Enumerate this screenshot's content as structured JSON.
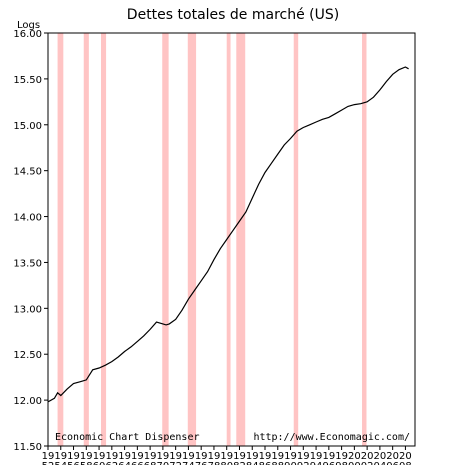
{
  "chart_data": {
    "type": "line",
    "title": "Dettes totales de marché (US)",
    "ylabel": "Logs",
    "xlabel": "",
    "ylim": [
      11.5,
      16.0
    ],
    "xlim": [
      1952,
      2009.5
    ],
    "y_ticks": [
      "16.00",
      "15.50",
      "15.00",
      "14.50",
      "14.00",
      "13.50",
      "13.00",
      "12.50",
      "12.00",
      "11.50"
    ],
    "y_tick_values": [
      16.0,
      15.5,
      15.0,
      14.5,
      14.0,
      13.5,
      13.0,
      12.5,
      12.0,
      11.5
    ],
    "x_ticks_top": [
      "19",
      "19",
      "19",
      "19",
      "19",
      "19",
      "19",
      "19",
      "19",
      "19",
      "19",
      "19",
      "19",
      "19",
      "19",
      "19",
      "19",
      "19",
      "19",
      "19",
      "19",
      "19",
      "19",
      "19",
      "20",
      "20",
      "20",
      "20",
      "20"
    ],
    "x_ticks_bottom": [
      "52",
      "54",
      "56",
      "58",
      "60",
      "62",
      "64",
      "66",
      "68",
      "70",
      "72",
      "74",
      "76",
      "78",
      "80",
      "82",
      "84",
      "86",
      "88",
      "90",
      "92",
      "94",
      "96",
      "98",
      "00",
      "02",
      "04",
      "06",
      "08"
    ],
    "x_tick_values": [
      1952,
      1954,
      1956,
      1958,
      1960,
      1962,
      1964,
      1966,
      1968,
      1970,
      1972,
      1974,
      1976,
      1978,
      1980,
      1982,
      1984,
      1986,
      1988,
      1990,
      1992,
      1994,
      1996,
      1998,
      2000,
      2002,
      2004,
      2006,
      2008
    ],
    "grid": false,
    "recessions": [
      [
        1953.5,
        1954.4
      ],
      [
        1957.6,
        1958.4
      ],
      [
        1960.3,
        1961.1
      ],
      [
        1969.9,
        1970.9
      ],
      [
        1973.9,
        1975.2
      ],
      [
        1980.0,
        1980.6
      ],
      [
        1981.5,
        1982.9
      ],
      [
        1990.5,
        1991.2
      ],
      [
        2001.2,
        2001.9
      ]
    ],
    "recession_color": "#ffc4c4",
    "line_color": "#000000",
    "series": [
      {
        "x": [
          1952,
          1953,
          1953.5,
          1954,
          1955,
          1956,
          1957,
          1958,
          1959,
          1960,
          1961,
          1962,
          1963,
          1964,
          1965,
          1966,
          1967,
          1968,
          1969,
          1970,
          1970.5,
          1971,
          1972,
          1973,
          1974,
          1975,
          1976,
          1977,
          1978,
          1979,
          1980,
          1981,
          1982,
          1983,
          1984,
          1985,
          1986,
          1987,
          1988,
          1989,
          1990,
          1991,
          1992,
          1993,
          1994,
          1995,
          1996,
          1997,
          1998,
          1999,
          2000,
          2001,
          2002,
          2003,
          2004,
          2005,
          2006,
          2007,
          2008,
          2008.5
        ],
        "values": [
          11.98,
          12.02,
          12.08,
          12.05,
          12.12,
          12.18,
          12.2,
          12.22,
          12.33,
          12.35,
          12.38,
          12.42,
          12.47,
          12.53,
          12.58,
          12.64,
          12.7,
          12.77,
          12.85,
          12.83,
          12.82,
          12.83,
          12.88,
          12.98,
          13.1,
          13.2,
          13.3,
          13.4,
          13.53,
          13.65,
          13.75,
          13.85,
          13.95,
          14.05,
          14.2,
          14.35,
          14.48,
          14.58,
          14.68,
          14.78,
          14.85,
          14.93,
          14.97,
          15.0,
          15.03,
          15.06,
          15.08,
          15.12,
          15.16,
          15.2,
          15.22,
          15.23,
          15.25,
          15.3,
          15.38,
          15.47,
          15.55,
          15.6,
          15.63,
          15.61
        ]
      }
    ],
    "annotations": [
      "Economic Chart Dispenser",
      "http://www.Economagic.com/"
    ]
  }
}
